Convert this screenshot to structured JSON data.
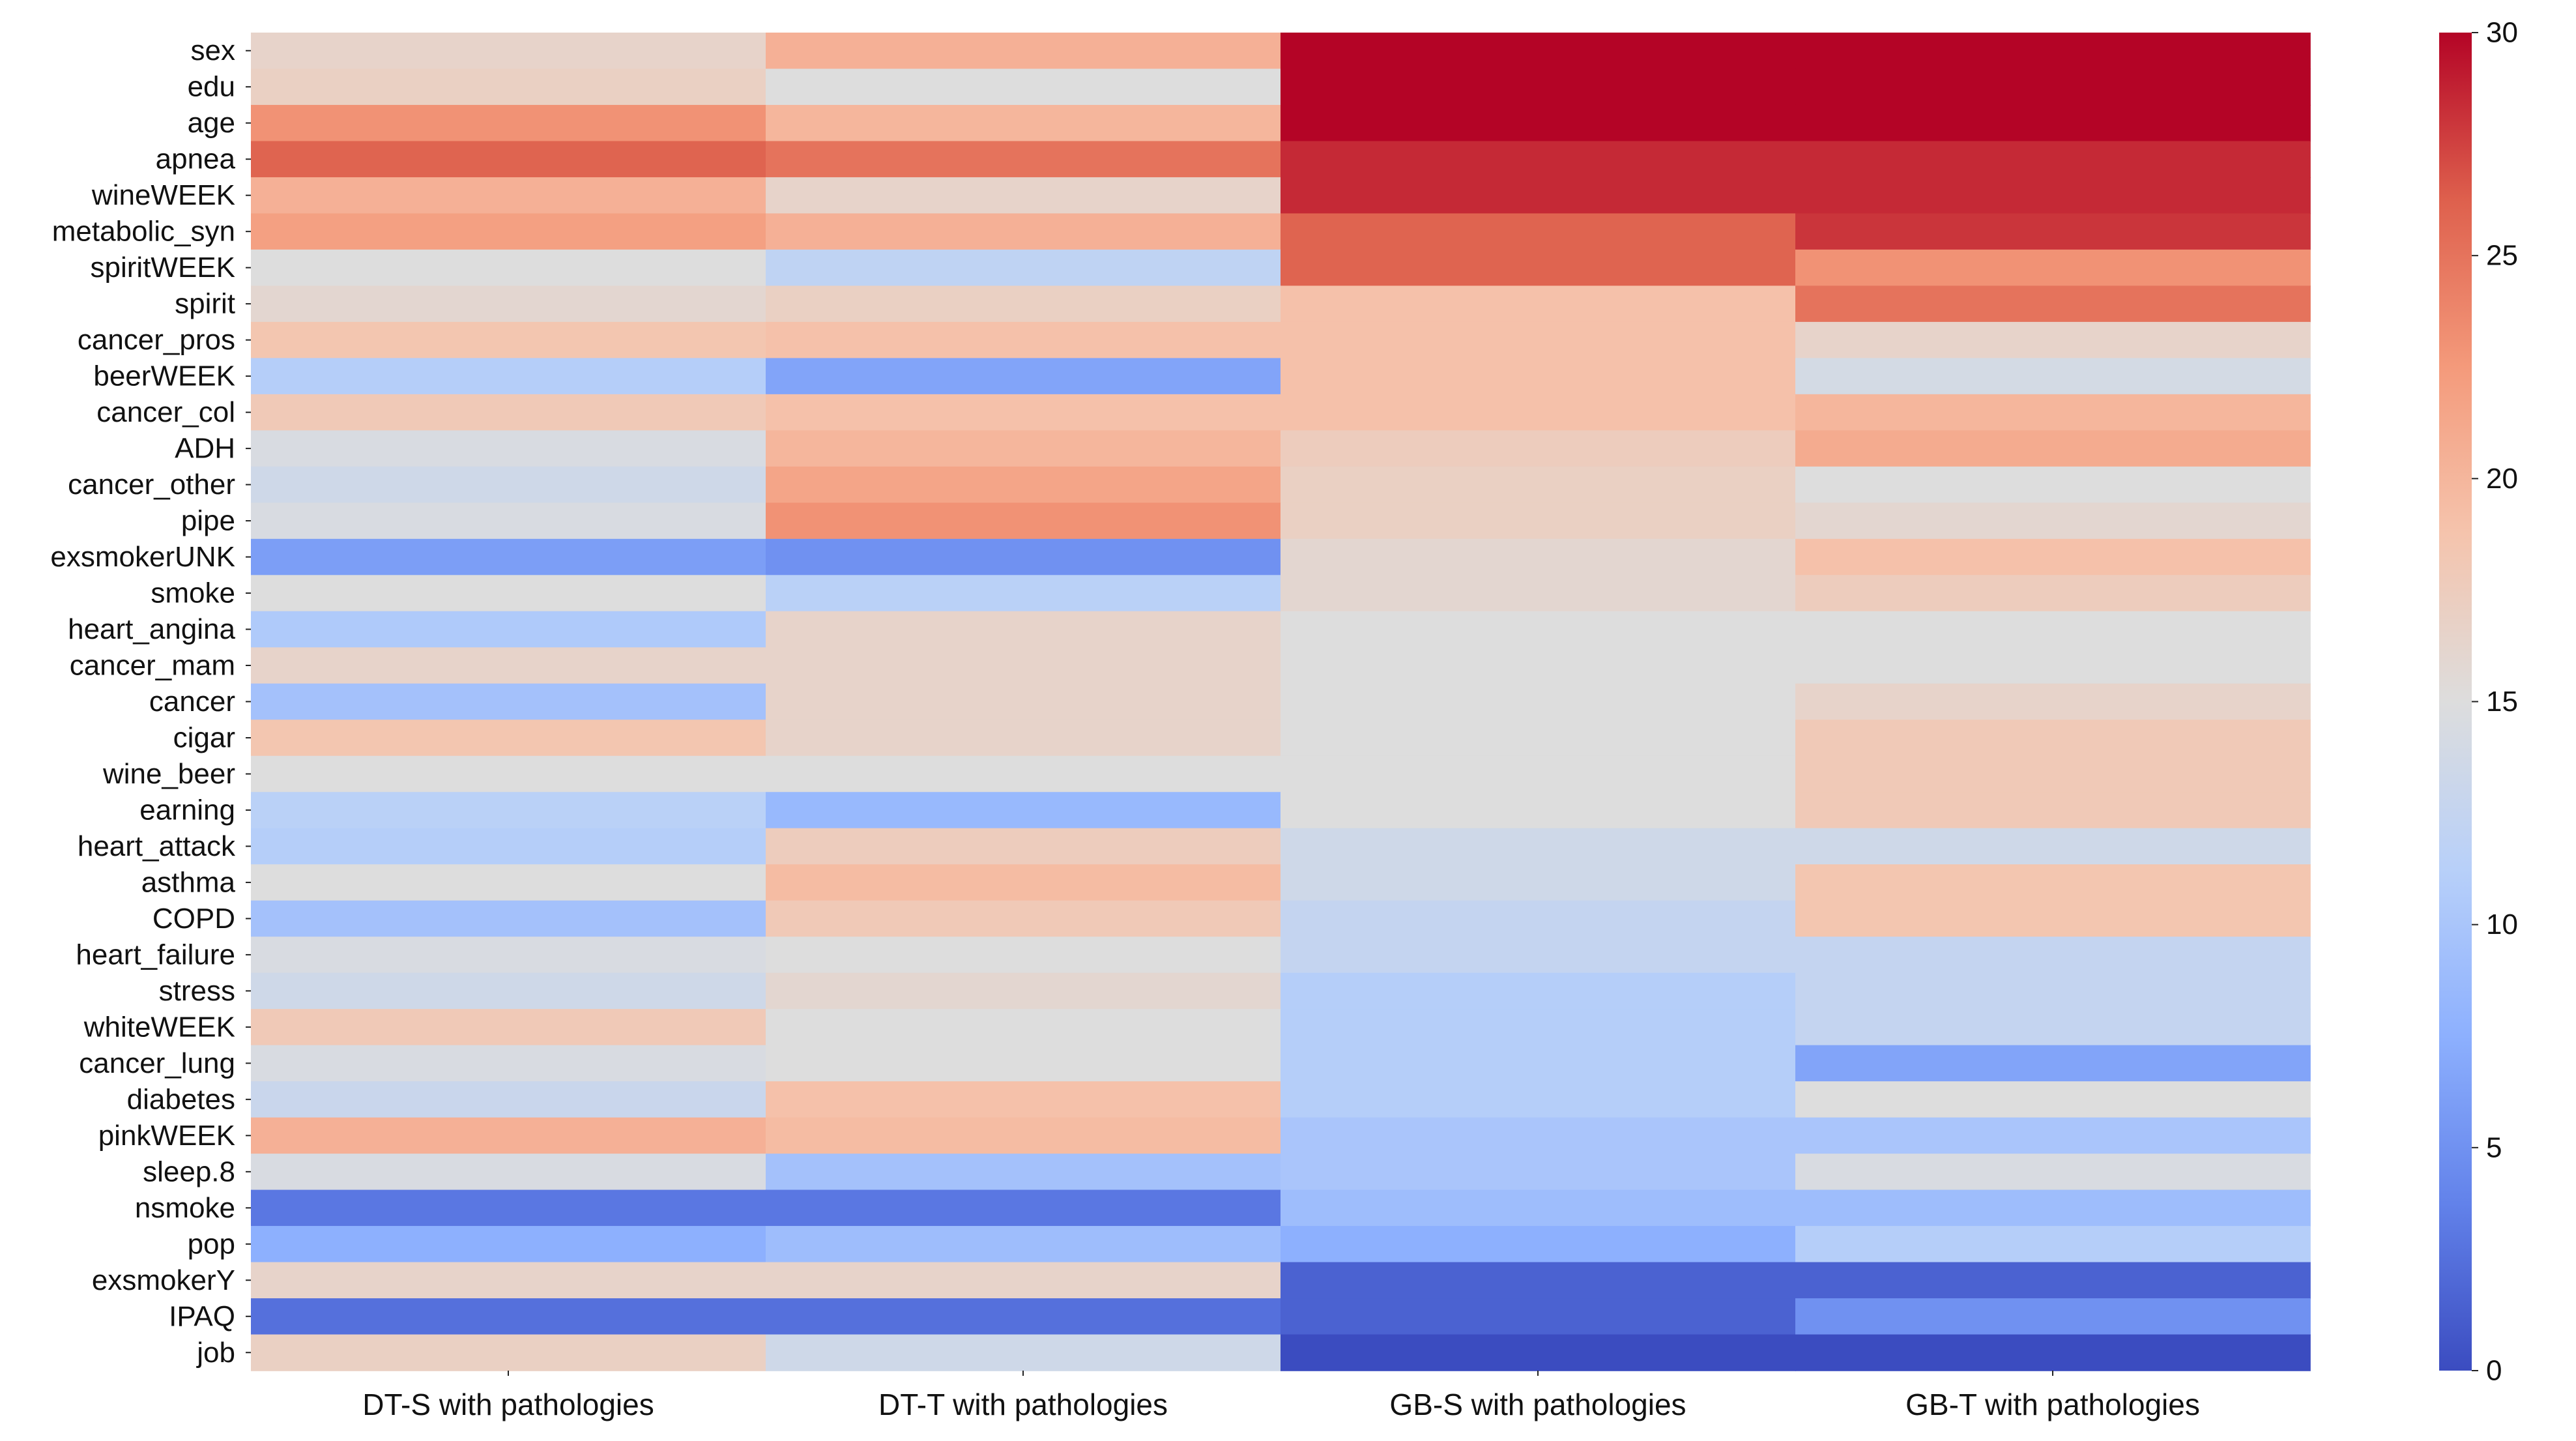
{
  "chart_data": {
    "type": "heatmap",
    "title": "",
    "xlabel": "",
    "ylabel": "",
    "columns": [
      "DT-S with pathologies",
      "DT-T with pathologies",
      "GB-S with pathologies",
      "GB-T with pathologies"
    ],
    "rows": [
      "sex",
      "edu",
      "age",
      "apnea",
      "wineWEEK",
      "metabolic_syn",
      "spiritWEEK",
      "spirit",
      "cancer_pros",
      "beerWEEK",
      "cancer_col",
      "ADH",
      "cancer_other",
      "pipe",
      "exsmokerUNK",
      "smoke",
      "heart_angina",
      "cancer_mam",
      "cancer",
      "cigar",
      "wine_beer",
      "earning",
      "heart_attack",
      "asthma",
      "COPD",
      "heart_failure",
      "stress",
      "whiteWEEK",
      "cancer_lung",
      "diabetes",
      "pinkWEEK",
      "sleep.8",
      "nsmoke",
      "pop",
      "exsmokerY",
      "IPAQ",
      "job"
    ],
    "values": [
      [
        16.5,
        20.5,
        30,
        30
      ],
      [
        17,
        15,
        30,
        30
      ],
      [
        23,
        20,
        30,
        30
      ],
      [
        26,
        25,
        28.5,
        28.5
      ],
      [
        20.5,
        16.5,
        28.5,
        28.5
      ],
      [
        22,
        20.5,
        26,
        28
      ],
      [
        15,
        12,
        26,
        23
      ],
      [
        16,
        17,
        19,
        25
      ],
      [
        18.5,
        19,
        19,
        16.5
      ],
      [
        11,
        6.5,
        19,
        14
      ],
      [
        18,
        19,
        19,
        20
      ],
      [
        14.5,
        20,
        17.5,
        21
      ],
      [
        13.5,
        21.5,
        17,
        15
      ],
      [
        14.5,
        23,
        17,
        16
      ],
      [
        6,
        5,
        16,
        19
      ],
      [
        15,
        11.5,
        16,
        17.5
      ],
      [
        10.5,
        16.5,
        15,
        15
      ],
      [
        16.5,
        16.5,
        15,
        15
      ],
      [
        9.5,
        16.5,
        15,
        16.5
      ],
      [
        18.5,
        16.5,
        15,
        18
      ],
      [
        15,
        15,
        15,
        18
      ],
      [
        11.5,
        8.5,
        15,
        18
      ],
      [
        11,
        17.5,
        13.5,
        13.5
      ],
      [
        15,
        19.5,
        13.5,
        18.5
      ],
      [
        9.5,
        18,
        12.5,
        18.5
      ],
      [
        14.5,
        15,
        12.5,
        12.5
      ],
      [
        13.5,
        16,
        11,
        12.5
      ],
      [
        18,
        15,
        11,
        12.5
      ],
      [
        14.5,
        15,
        11,
        6.5
      ],
      [
        13,
        19,
        11,
        15
      ],
      [
        20.5,
        19.5,
        10,
        10
      ],
      [
        14.5,
        9.5,
        10,
        14.5
      ],
      [
        3,
        3,
        9,
        9
      ],
      [
        7.5,
        9,
        7.5,
        11
      ],
      [
        16.5,
        16.5,
        1.5,
        1.5
      ],
      [
        2.5,
        2.5,
        1.5,
        5
      ],
      [
        17,
        13.5,
        0,
        0
      ]
    ],
    "colormap": "coolwarm",
    "vmin": 0,
    "vmax": 30,
    "colorbar": {
      "ticks": [
        0,
        5,
        10,
        15,
        20,
        25,
        30
      ],
      "tick_labels": [
        "0",
        "5",
        "10",
        "15",
        "20",
        "25",
        "30"
      ]
    },
    "grid": false,
    "legend_position": "right"
  }
}
